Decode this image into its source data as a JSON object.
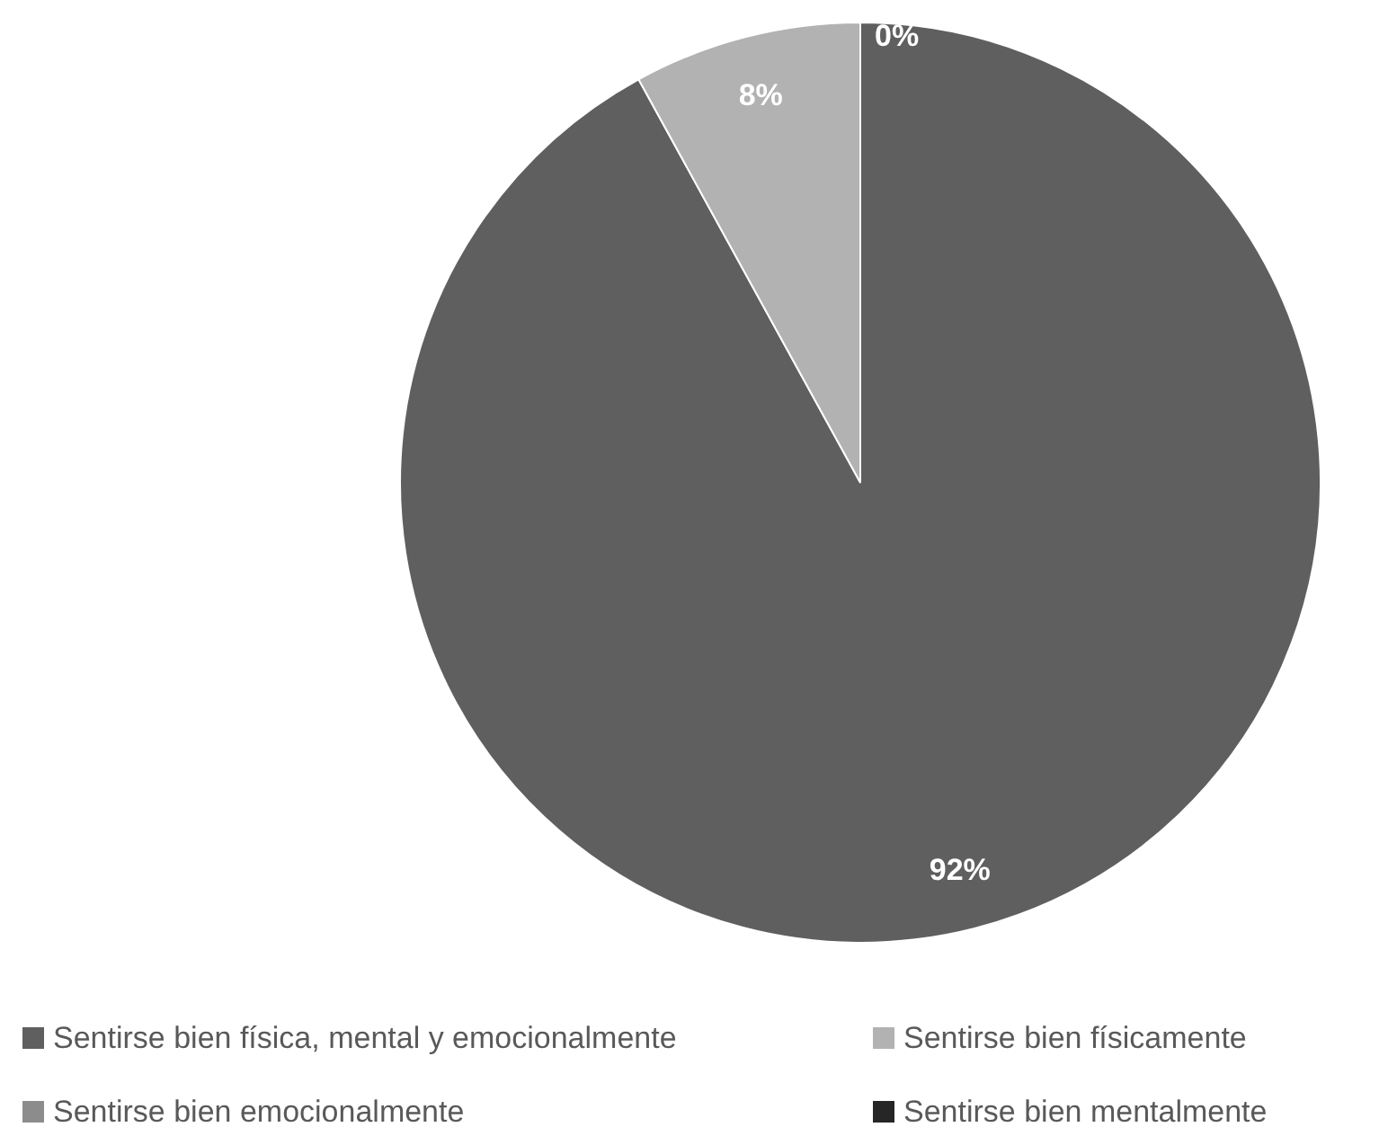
{
  "chart_data": {
    "type": "pie",
    "categories": [
      "Sentirse bien física, mental y emocionalmente",
      "Sentirse bien físicamente",
      "Sentirse bien emocionalmente",
      "Sentirse bien mentalmente"
    ],
    "values": [
      92,
      8,
      0,
      0
    ],
    "colors": [
      "#5f5f5f",
      "#b2b2b2",
      "#8c8c8c",
      "#262626"
    ],
    "value_labels": [
      "92%",
      "8%",
      "0%",
      null
    ],
    "legend": "bottom"
  }
}
